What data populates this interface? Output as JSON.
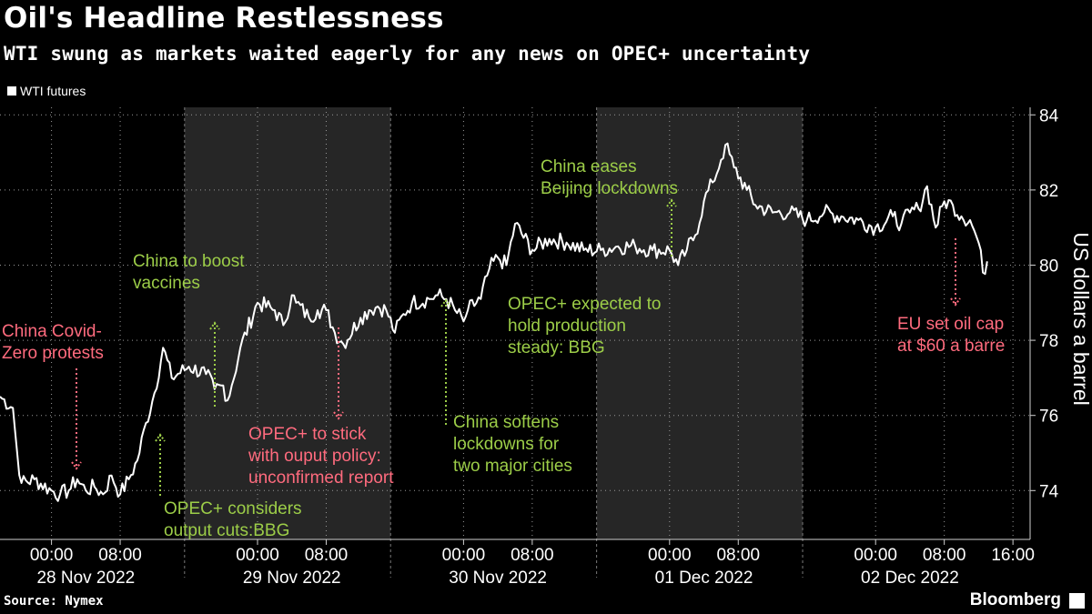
{
  "header": {
    "title": "Oil's Headline Restlessness",
    "subtitle": "WTI swung as markets waited eagerly for any news on OPEC+ uncertainty"
  },
  "footer": {
    "source": "Source: Nymex",
    "brand": "Bloomberg"
  },
  "colors": {
    "background": "#000000",
    "line": "#ffffff",
    "shade": "#262626",
    "positive": "#9ccd48",
    "negative": "#ff6b7e"
  },
  "chart_data": {
    "type": "line",
    "title": "Oil's Headline Restlessness",
    "subtitle": "WTI swung as markets waited eagerly for any news on OPEC+ uncertainty",
    "ylabel": "US dollars a barrel",
    "ylim": [
      72.7,
      84.2
    ],
    "y_ticks": [
      "74",
      "76",
      "78",
      "80",
      "82",
      "84"
    ],
    "y_tick_values": [
      74,
      76,
      78,
      80,
      82,
      84
    ],
    "x_tick_labels": [
      "00:00",
      "08:00",
      "00:00",
      "08:00",
      "00:00",
      "08:00",
      "00:00",
      "08:00",
      "00:00",
      "08:00",
      "16:00"
    ],
    "x_tick_hours": [
      0,
      8,
      24,
      32,
      48,
      56,
      72,
      80,
      96,
      104,
      112
    ],
    "x_range_hours": [
      -6,
      114
    ],
    "day_labels": [
      "28 Nov 2022",
      "29 Nov 2022",
      "30 Nov 2022",
      "01 Dec 2022",
      "02 Dec 2022"
    ],
    "day_centers_hours": [
      4,
      28,
      52,
      76,
      100
    ],
    "shaded_days": [
      [
        15.5,
        39.5
      ],
      [
        63.5,
        87.5
      ]
    ],
    "legend": [
      "WTI futures"
    ],
    "series": [
      {
        "name": "WTI futures",
        "x_hours": [
          -6,
          -4.5,
          -4,
          -3.5,
          -2,
          0,
          1,
          2,
          3,
          4,
          5,
          6,
          7,
          8,
          9,
          10,
          11,
          12,
          13,
          14,
          16,
          18,
          19,
          20,
          20.5,
          21,
          22,
          24,
          26,
          27,
          28,
          28.5,
          30,
          31,
          32,
          33,
          34,
          36,
          37,
          38,
          39,
          40,
          41,
          42,
          44,
          45,
          46,
          47,
          48,
          48.5,
          50,
          51,
          52,
          53,
          54,
          56,
          58,
          60,
          62,
          64,
          66,
          68,
          70,
          72,
          73,
          74,
          75,
          76,
          77,
          78,
          78.5,
          79.5,
          81,
          82,
          84,
          86,
          88,
          90,
          92,
          94,
          96,
          98,
          99,
          100,
          101,
          102,
          103,
          104,
          105,
          106,
          107,
          108,
          108.5,
          109
        ],
        "values": [
          76.5,
          76.2,
          75.0,
          74.2,
          74.3,
          74.0,
          73.9,
          74.0,
          74.3,
          74.0,
          74.1,
          73.9,
          74.4,
          73.9,
          74.3,
          74.8,
          75.8,
          76.6,
          77.8,
          77.0,
          77.3,
          77.1,
          76.7,
          76.8,
          76.4,
          76.8,
          77.8,
          79.0,
          78.8,
          78.4,
          79.2,
          79.0,
          78.6,
          78.8,
          78.8,
          78.2,
          77.9,
          78.6,
          78.8,
          78.9,
          78.8,
          78.2,
          78.7,
          79.0,
          79.1,
          79.2,
          79.1,
          78.8,
          78.5,
          78.8,
          79.1,
          79.9,
          80.2,
          80.0,
          81.1,
          80.4,
          80.7,
          80.6,
          80.4,
          80.4,
          80.5,
          80.5,
          80.4,
          80.4,
          80.0,
          80.4,
          80.8,
          81.7,
          82.2,
          82.8,
          83.2,
          82.6,
          82.0,
          81.6,
          81.4,
          81.4,
          81.2,
          81.4,
          81.3,
          81.2,
          81.0,
          81.3,
          81.1,
          81.4,
          81.5,
          82.1,
          81.0,
          81.7,
          81.6,
          81.3,
          81.2,
          80.6,
          79.8,
          80.1
        ]
      }
    ],
    "annotations": [
      {
        "text": [
          "China Covid-",
          "Zero protests"
        ],
        "arrow": "down",
        "color": "negative",
        "x_hours": 1.5,
        "price": 74.2
      },
      {
        "text": [
          "China to boost",
          "vaccines"
        ],
        "arrow": "up",
        "color": "positive",
        "x_hours": 19.8,
        "price": 78.6
      },
      {
        "text": [
          "OPEC+ considers",
          "output cuts:BBG"
        ],
        "arrow": "up",
        "color": "positive",
        "x_hours": 11.3,
        "price": 75.7
      },
      {
        "text": [
          "OPEC+ to stick",
          "with ouput policy:",
          "unconfirmed report"
        ],
        "arrow": "down",
        "color": "negative",
        "x_hours": 33.3,
        "price": 76.0
      },
      {
        "text": [
          "China softens",
          "lockdowns for",
          "two major cities"
        ],
        "arrow": "up",
        "color": "positive",
        "x_hours": 46.5,
        "price": 78.6
      },
      {
        "text": [
          "OPEC+ expected to",
          "hold production",
          "steady: BBG"
        ],
        "arrow": "none",
        "color": "positive",
        "x_hours": 55,
        "price": 79.0
      },
      {
        "text": [
          "China eases",
          "Beijing lockdowns"
        ],
        "arrow": "up",
        "color": "positive",
        "x_hours": 72,
        "price": 81.9
      },
      {
        "text": [
          "EU set oil cap",
          "at $60 a barre"
        ],
        "arrow": "down",
        "color": "negative",
        "x_hours": 106.2,
        "price": 79.0
      }
    ]
  }
}
